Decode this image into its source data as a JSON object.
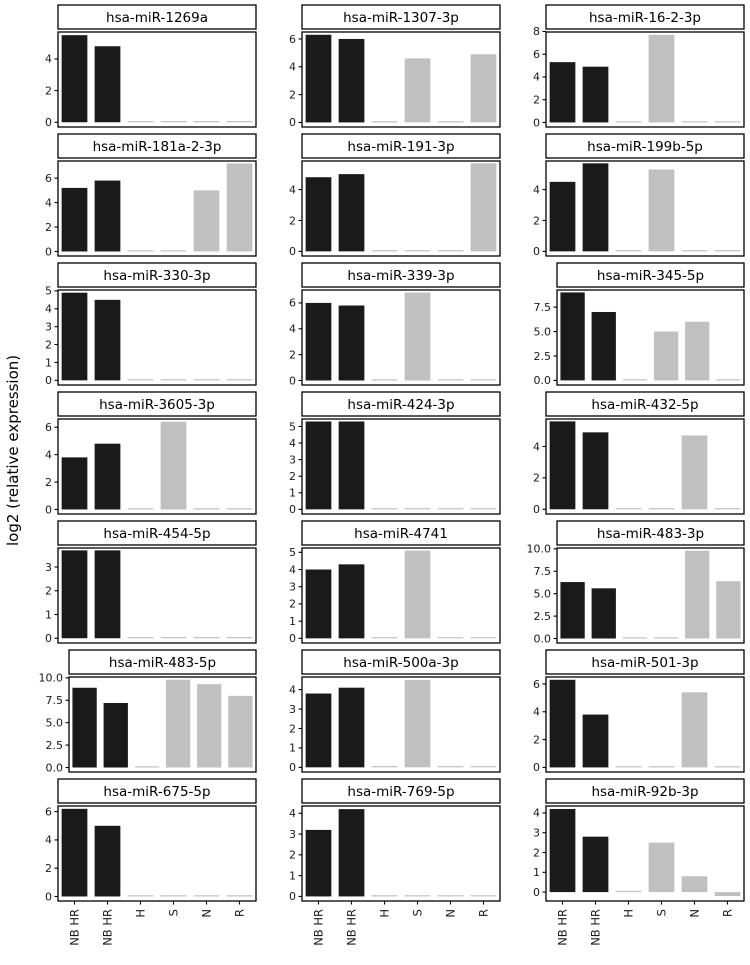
{
  "colors": {
    "bar_black": "#1a1a1a",
    "bar_gray": "#c0c0c0",
    "panel_border": "#000000",
    "background": "#ffffff"
  },
  "chart_data": {
    "type": "bar",
    "layout": "7 rows x 3 columns of small-multiple bar panels, no gridlines, no legend, each panel has its own y axis; x category labels rotated 90deg on bottom row only",
    "ylabel": "log2 (relative expression)",
    "categories": [
      "NB HR",
      "NB HR",
      "H",
      "S",
      "N",
      "R"
    ],
    "category_colors": [
      "#1a1a1a",
      "#1a1a1a",
      "#c0c0c0",
      "#c0c0c0",
      "#c0c0c0",
      "#c0c0c0"
    ],
    "panels": [
      {
        "title": "hsa-miR-1269a",
        "values": [
          5.5,
          4.8,
          0,
          0,
          0,
          0
        ],
        "yticks": [
          0,
          2,
          4
        ],
        "ytick_labels": [
          "0",
          "2",
          "4"
        ],
        "ylim": [
          -0.3,
          5.7
        ]
      },
      {
        "title": "hsa-miR-1307-3p",
        "values": [
          6.3,
          6.0,
          0,
          4.6,
          0,
          4.9
        ],
        "yticks": [
          0,
          2,
          4,
          6
        ],
        "ytick_labels": [
          "0",
          "2",
          "4",
          "6"
        ],
        "ylim": [
          -0.33,
          6.5
        ]
      },
      {
        "title": "hsa-miR-16-2-3p",
        "values": [
          5.3,
          4.9,
          0,
          7.7,
          0,
          0
        ],
        "yticks": [
          0,
          2,
          4,
          6,
          8
        ],
        "ytick_labels": [
          "0",
          "2",
          "4",
          "6",
          "8"
        ],
        "ylim": [
          -0.4,
          7.95
        ]
      },
      {
        "title": "hsa-miR-181a-2-3p",
        "values": [
          5.2,
          5.8,
          0,
          0,
          5.0,
          7.2
        ],
        "yticks": [
          0,
          2,
          4,
          6
        ],
        "ytick_labels": [
          "0",
          "2",
          "4",
          "6"
        ],
        "ylim": [
          -0.37,
          7.4
        ]
      },
      {
        "title": "hsa-miR-191-3p",
        "values": [
          4.8,
          5.0,
          0,
          0,
          0,
          5.7
        ],
        "yticks": [
          0,
          2,
          4
        ],
        "ytick_labels": [
          "0",
          "2",
          "4"
        ],
        "ylim": [
          -0.3,
          5.85
        ]
      },
      {
        "title": "hsa-miR-199b-5p",
        "values": [
          4.5,
          5.7,
          0,
          5.3,
          0,
          0
        ],
        "yticks": [
          0,
          2,
          4
        ],
        "ytick_labels": [
          "0",
          "2",
          "4"
        ],
        "ylim": [
          -0.3,
          5.85
        ]
      },
      {
        "title": "hsa-miR-330-3p",
        "values": [
          4.9,
          4.5,
          0,
          0,
          0,
          0
        ],
        "yticks": [
          0,
          1,
          2,
          3,
          4,
          5
        ],
        "ytick_labels": [
          "0",
          "1",
          "2",
          "3",
          "4",
          "5"
        ],
        "ylim": [
          -0.26,
          5.05
        ]
      },
      {
        "title": "hsa-miR-339-3p",
        "values": [
          6.0,
          5.8,
          0,
          6.8,
          0,
          0
        ],
        "yticks": [
          0,
          2,
          4,
          6
        ],
        "ytick_labels": [
          "0",
          "2",
          "4",
          "6"
        ],
        "ylim": [
          -0.35,
          7.0
        ]
      },
      {
        "title": "hsa-miR-345-5p",
        "values": [
          9.0,
          7.0,
          0,
          5.0,
          6.0,
          0
        ],
        "yticks": [
          0,
          2.5,
          5,
          7.5
        ],
        "ytick_labels": [
          "0.0",
          "2.5",
          "5.0",
          "7.5"
        ],
        "ylim": [
          -0.47,
          9.25
        ]
      },
      {
        "title": "hsa-miR-3605-3p",
        "values": [
          3.8,
          4.8,
          0,
          6.4,
          0,
          0
        ],
        "yticks": [
          0,
          2,
          4,
          6
        ],
        "ytick_labels": [
          "0",
          "2",
          "4",
          "6"
        ],
        "ylim": [
          -0.33,
          6.6
        ]
      },
      {
        "title": "hsa-miR-424-3p",
        "values": [
          5.3,
          5.3,
          0,
          0,
          0,
          0
        ],
        "yticks": [
          0,
          1,
          2,
          3,
          4,
          5
        ],
        "ytick_labels": [
          "0",
          "1",
          "2",
          "3",
          "4",
          "5"
        ],
        "ylim": [
          -0.28,
          5.45
        ]
      },
      {
        "title": "hsa-miR-432-5p",
        "values": [
          5.6,
          4.9,
          0,
          0,
          4.7,
          0
        ],
        "yticks": [
          0,
          2,
          4
        ],
        "ytick_labels": [
          "0",
          "2",
          "4"
        ],
        "ylim": [
          -0.3,
          5.75
        ]
      },
      {
        "title": "hsa-miR-454-5p",
        "values": [
          3.7,
          3.7,
          0,
          0,
          0,
          0
        ],
        "yticks": [
          0,
          1,
          2,
          3
        ],
        "ytick_labels": [
          "0",
          "1",
          "2",
          "3"
        ],
        "ylim": [
          -0.2,
          3.8
        ]
      },
      {
        "title": "hsa-miR-4741",
        "values": [
          4.0,
          4.3,
          0,
          5.1,
          0,
          0
        ],
        "yticks": [
          0,
          1,
          2,
          3,
          4,
          5
        ],
        "ytick_labels": [
          "0",
          "1",
          "2",
          "3",
          "4",
          "5"
        ],
        "ylim": [
          -0.27,
          5.25
        ]
      },
      {
        "title": "hsa-miR-483-3p",
        "values": [
          6.3,
          5.6,
          0,
          0,
          9.8,
          6.4
        ],
        "yticks": [
          0,
          2.5,
          5,
          7.5,
          10
        ],
        "ytick_labels": [
          "0.0",
          "2.5",
          "5.0",
          "7.5",
          "10.0"
        ],
        "ylim": [
          -0.5,
          10.1
        ]
      },
      {
        "title": "hsa-miR-483-5p",
        "values": [
          8.9,
          7.2,
          0,
          9.8,
          9.3,
          8.0
        ],
        "yticks": [
          0,
          2.5,
          5,
          7.5,
          10
        ],
        "ytick_labels": [
          "0.0",
          "2.5",
          "5.0",
          "7.5",
          "10.0"
        ],
        "ylim": [
          -0.5,
          10.1
        ]
      },
      {
        "title": "hsa-miR-500a-3p",
        "values": [
          3.8,
          4.1,
          0,
          4.5,
          0,
          0
        ],
        "yticks": [
          0,
          1,
          2,
          3,
          4
        ],
        "ytick_labels": [
          "0",
          "1",
          "2",
          "3",
          "4"
        ],
        "ylim": [
          -0.24,
          4.65
        ]
      },
      {
        "title": "hsa-miR-501-3p",
        "values": [
          6.3,
          3.8,
          0,
          0,
          5.4,
          0
        ],
        "yticks": [
          0,
          2,
          4,
          6
        ],
        "ytick_labels": [
          "0",
          "2",
          "4",
          "6"
        ],
        "ylim": [
          -0.33,
          6.5
        ]
      },
      {
        "title": "hsa-miR-675-5p",
        "values": [
          6.2,
          5.0,
          0,
          0,
          0,
          0
        ],
        "yticks": [
          0,
          2,
          4,
          6
        ],
        "ytick_labels": [
          "0",
          "2",
          "4",
          "6"
        ],
        "ylim": [
          -0.32,
          6.4
        ]
      },
      {
        "title": "hsa-miR-769-5p",
        "values": [
          3.2,
          4.2,
          0,
          0,
          0,
          0
        ],
        "yticks": [
          0,
          1,
          2,
          3,
          4
        ],
        "ytick_labels": [
          "0",
          "1",
          "2",
          "3",
          "4"
        ],
        "ylim": [
          -0.22,
          4.35
        ]
      },
      {
        "title": "hsa-miR-92b-3p",
        "values": [
          4.2,
          2.8,
          0,
          2.5,
          0.8,
          -0.2
        ],
        "yticks": [
          0,
          1,
          2,
          3,
          4
        ],
        "ytick_labels": [
          "0",
          "1",
          "2",
          "3",
          "4"
        ],
        "ylim": [
          -0.45,
          4.35
        ]
      }
    ]
  }
}
